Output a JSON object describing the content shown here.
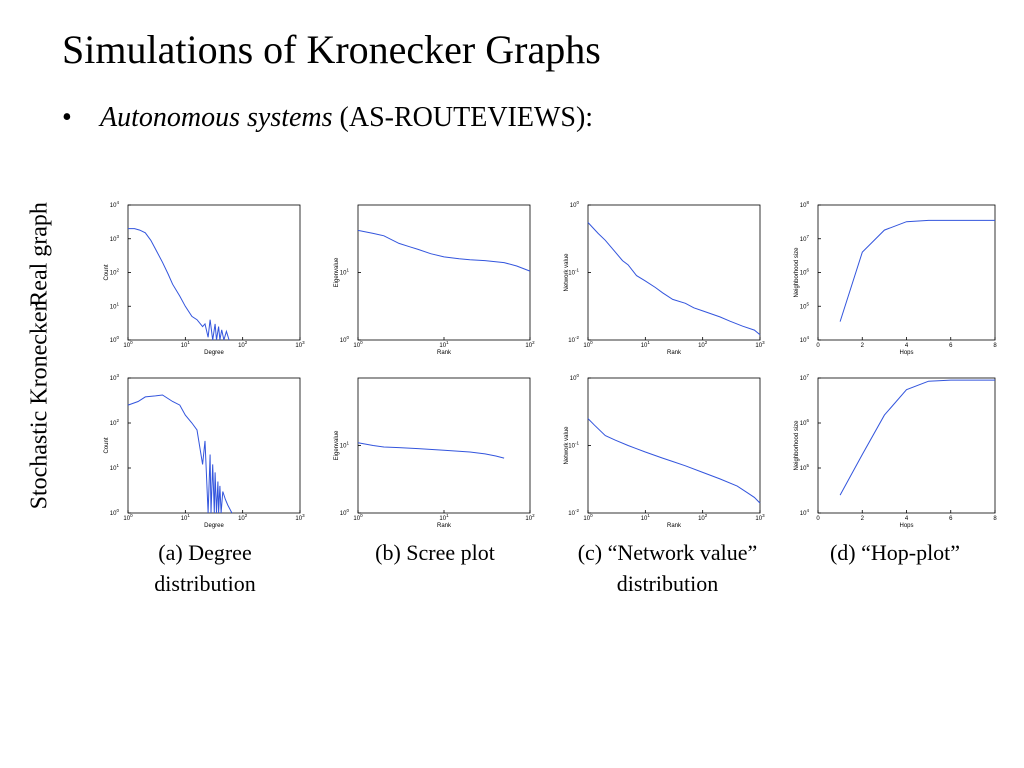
{
  "slide": {
    "title": "Simulations of Kronecker Graphs",
    "bullet_italic": "Autonomous systems",
    "bullet_rest": " (AS-ROUTEVIEWS):",
    "bullet_symbol": "•"
  },
  "row_labels": [
    "Real graph",
    "Stochastic Kronecker"
  ],
  "captions": [
    "(a) Degree distribution",
    "(b) Scree plot",
    "(c) “Network value” distribution",
    "(d) “Hop-plot”"
  ],
  "chart_data": [
    {
      "id": "real-degree",
      "type": "line",
      "xscale": "log",
      "yscale": "log",
      "xlabel": "Degree",
      "ylabel": "Count",
      "xlim": [
        1,
        1000
      ],
      "ylim": [
        1,
        10000
      ],
      "xticks": [
        1,
        10,
        100,
        1000
      ],
      "yticks": [
        1,
        10,
        100,
        1000,
        10000
      ],
      "x": [
        1,
        1.3,
        1.6,
        2,
        2.5,
        3,
        4,
        5,
        6,
        8,
        10,
        13,
        16,
        20,
        22,
        25,
        27,
        30,
        33,
        35,
        38,
        40,
        43,
        47,
        52,
        58
      ],
      "y": [
        2000,
        2000,
        1800,
        1500,
        900,
        500,
        200,
        90,
        45,
        20,
        10,
        5,
        4,
        2.5,
        3,
        1.2,
        4,
        1,
        3,
        1,
        2.5,
        1,
        2,
        1,
        1.8,
        1
      ]
    },
    {
      "id": "real-scree",
      "type": "line",
      "xscale": "log",
      "yscale": "log",
      "xlabel": "Rank",
      "ylabel": "Eigenvalue",
      "xlim": [
        1,
        100
      ],
      "ylim": [
        1,
        100
      ],
      "xticks": [
        1,
        10,
        100
      ],
      "yticks": [
        1,
        10
      ],
      "x": [
        1,
        1.5,
        2,
        3,
        4,
        5,
        7,
        10,
        15,
        20,
        30,
        50,
        70,
        100
      ],
      "y": [
        42,
        38,
        35,
        27,
        24,
        22,
        19,
        17,
        16,
        15.5,
        15,
        14,
        12.5,
        10.5
      ]
    },
    {
      "id": "real-network-value",
      "type": "line",
      "xscale": "log",
      "yscale": "log",
      "xlabel": "Rank",
      "ylabel": "Network value",
      "xlim": [
        1,
        1000
      ],
      "ylim": [
        0.01,
        1
      ],
      "xticks": [
        1,
        10,
        100,
        1000
      ],
      "yticks": [
        0.01,
        0.1,
        1
      ],
      "x": [
        1,
        1.5,
        2,
        3,
        4,
        5,
        7,
        10,
        15,
        20,
        30,
        50,
        70,
        100,
        200,
        300,
        500,
        800,
        1000
      ],
      "y": [
        0.55,
        0.38,
        0.3,
        0.2,
        0.15,
        0.13,
        0.09,
        0.075,
        0.06,
        0.05,
        0.04,
        0.035,
        0.03,
        0.027,
        0.022,
        0.019,
        0.016,
        0.014,
        0.012
      ]
    },
    {
      "id": "real-hop-plot",
      "type": "line",
      "xscale": "linear",
      "yscale": "log",
      "xlabel": "Hops",
      "ylabel": "Neighborhood size",
      "xlim": [
        0,
        8
      ],
      "ylim": [
        10000,
        100000000
      ],
      "xticks": [
        0,
        2,
        4,
        6,
        8
      ],
      "yticks": [
        10000,
        100000,
        1000000,
        10000000,
        100000000
      ],
      "x": [
        1,
        2,
        3,
        4,
        5,
        6,
        7,
        8
      ],
      "y": [
        35000,
        4000000,
        18000000,
        32000000,
        35000000,
        35000000,
        35000000,
        35000000
      ]
    },
    {
      "id": "kron-degree",
      "type": "line",
      "xscale": "log",
      "yscale": "log",
      "xlabel": "Degree",
      "ylabel": "Count",
      "xlim": [
        1,
        1000
      ],
      "ylim": [
        1,
        1000
      ],
      "xticks": [
        1,
        10,
        100,
        1000
      ],
      "yticks": [
        1,
        10,
        100,
        1000
      ],
      "x": [
        1,
        1.5,
        2,
        3,
        4,
        6,
        8,
        10,
        13,
        16,
        20,
        22,
        25,
        27,
        28,
        30,
        32,
        33,
        35,
        37,
        38,
        40,
        42,
        45,
        50,
        55,
        65
      ],
      "y": [
        250,
        300,
        380,
        400,
        420,
        300,
        250,
        150,
        100,
        70,
        12,
        40,
        1,
        20,
        1,
        12,
        1,
        8,
        1,
        5,
        1,
        4,
        1,
        3,
        2,
        1.5,
        1
      ]
    },
    {
      "id": "kron-scree",
      "type": "line",
      "xscale": "log",
      "yscale": "log",
      "xlabel": "Rank",
      "ylabel": "Eigenvalue",
      "xlim": [
        1,
        100
      ],
      "ylim": [
        1,
        100
      ],
      "xticks": [
        1,
        10,
        100
      ],
      "yticks": [
        1,
        10
      ],
      "x": [
        1,
        1.5,
        2,
        3,
        5,
        10,
        20,
        30,
        40,
        50
      ],
      "y": [
        11,
        10,
        9.5,
        9.3,
        9,
        8.5,
        8,
        7.5,
        7,
        6.5
      ]
    },
    {
      "id": "kron-network-value",
      "type": "line",
      "xscale": "log",
      "yscale": "log",
      "xlabel": "Rank",
      "ylabel": "Network value",
      "xlim": [
        1,
        1000
      ],
      "ylim": [
        0.01,
        1
      ],
      "xticks": [
        1,
        10,
        100,
        1000
      ],
      "yticks": [
        0.01,
        0.1,
        1
      ],
      "x": [
        1,
        1.3,
        2,
        3,
        5,
        10,
        20,
        30,
        50,
        100,
        200,
        400,
        600,
        800,
        1000
      ],
      "y": [
        0.25,
        0.2,
        0.14,
        0.12,
        0.1,
        0.08,
        0.065,
        0.058,
        0.05,
        0.04,
        0.032,
        0.025,
        0.02,
        0.017,
        0.014
      ]
    },
    {
      "id": "kron-hop-plot",
      "type": "line",
      "xscale": "linear",
      "yscale": "log",
      "xlabel": "Hops",
      "ylabel": "Neighborhood size",
      "xlim": [
        0,
        8
      ],
      "ylim": [
        10000,
        10000000
      ],
      "xticks": [
        0,
        2,
        4,
        6,
        8
      ],
      "yticks": [
        10000,
        100000,
        1000000,
        10000000
      ],
      "x": [
        1,
        2,
        3,
        4,
        5,
        6,
        7,
        8
      ],
      "y": [
        25000,
        200000,
        1500000,
        5500000,
        8500000,
        9000000,
        9000000,
        9000000
      ]
    }
  ]
}
